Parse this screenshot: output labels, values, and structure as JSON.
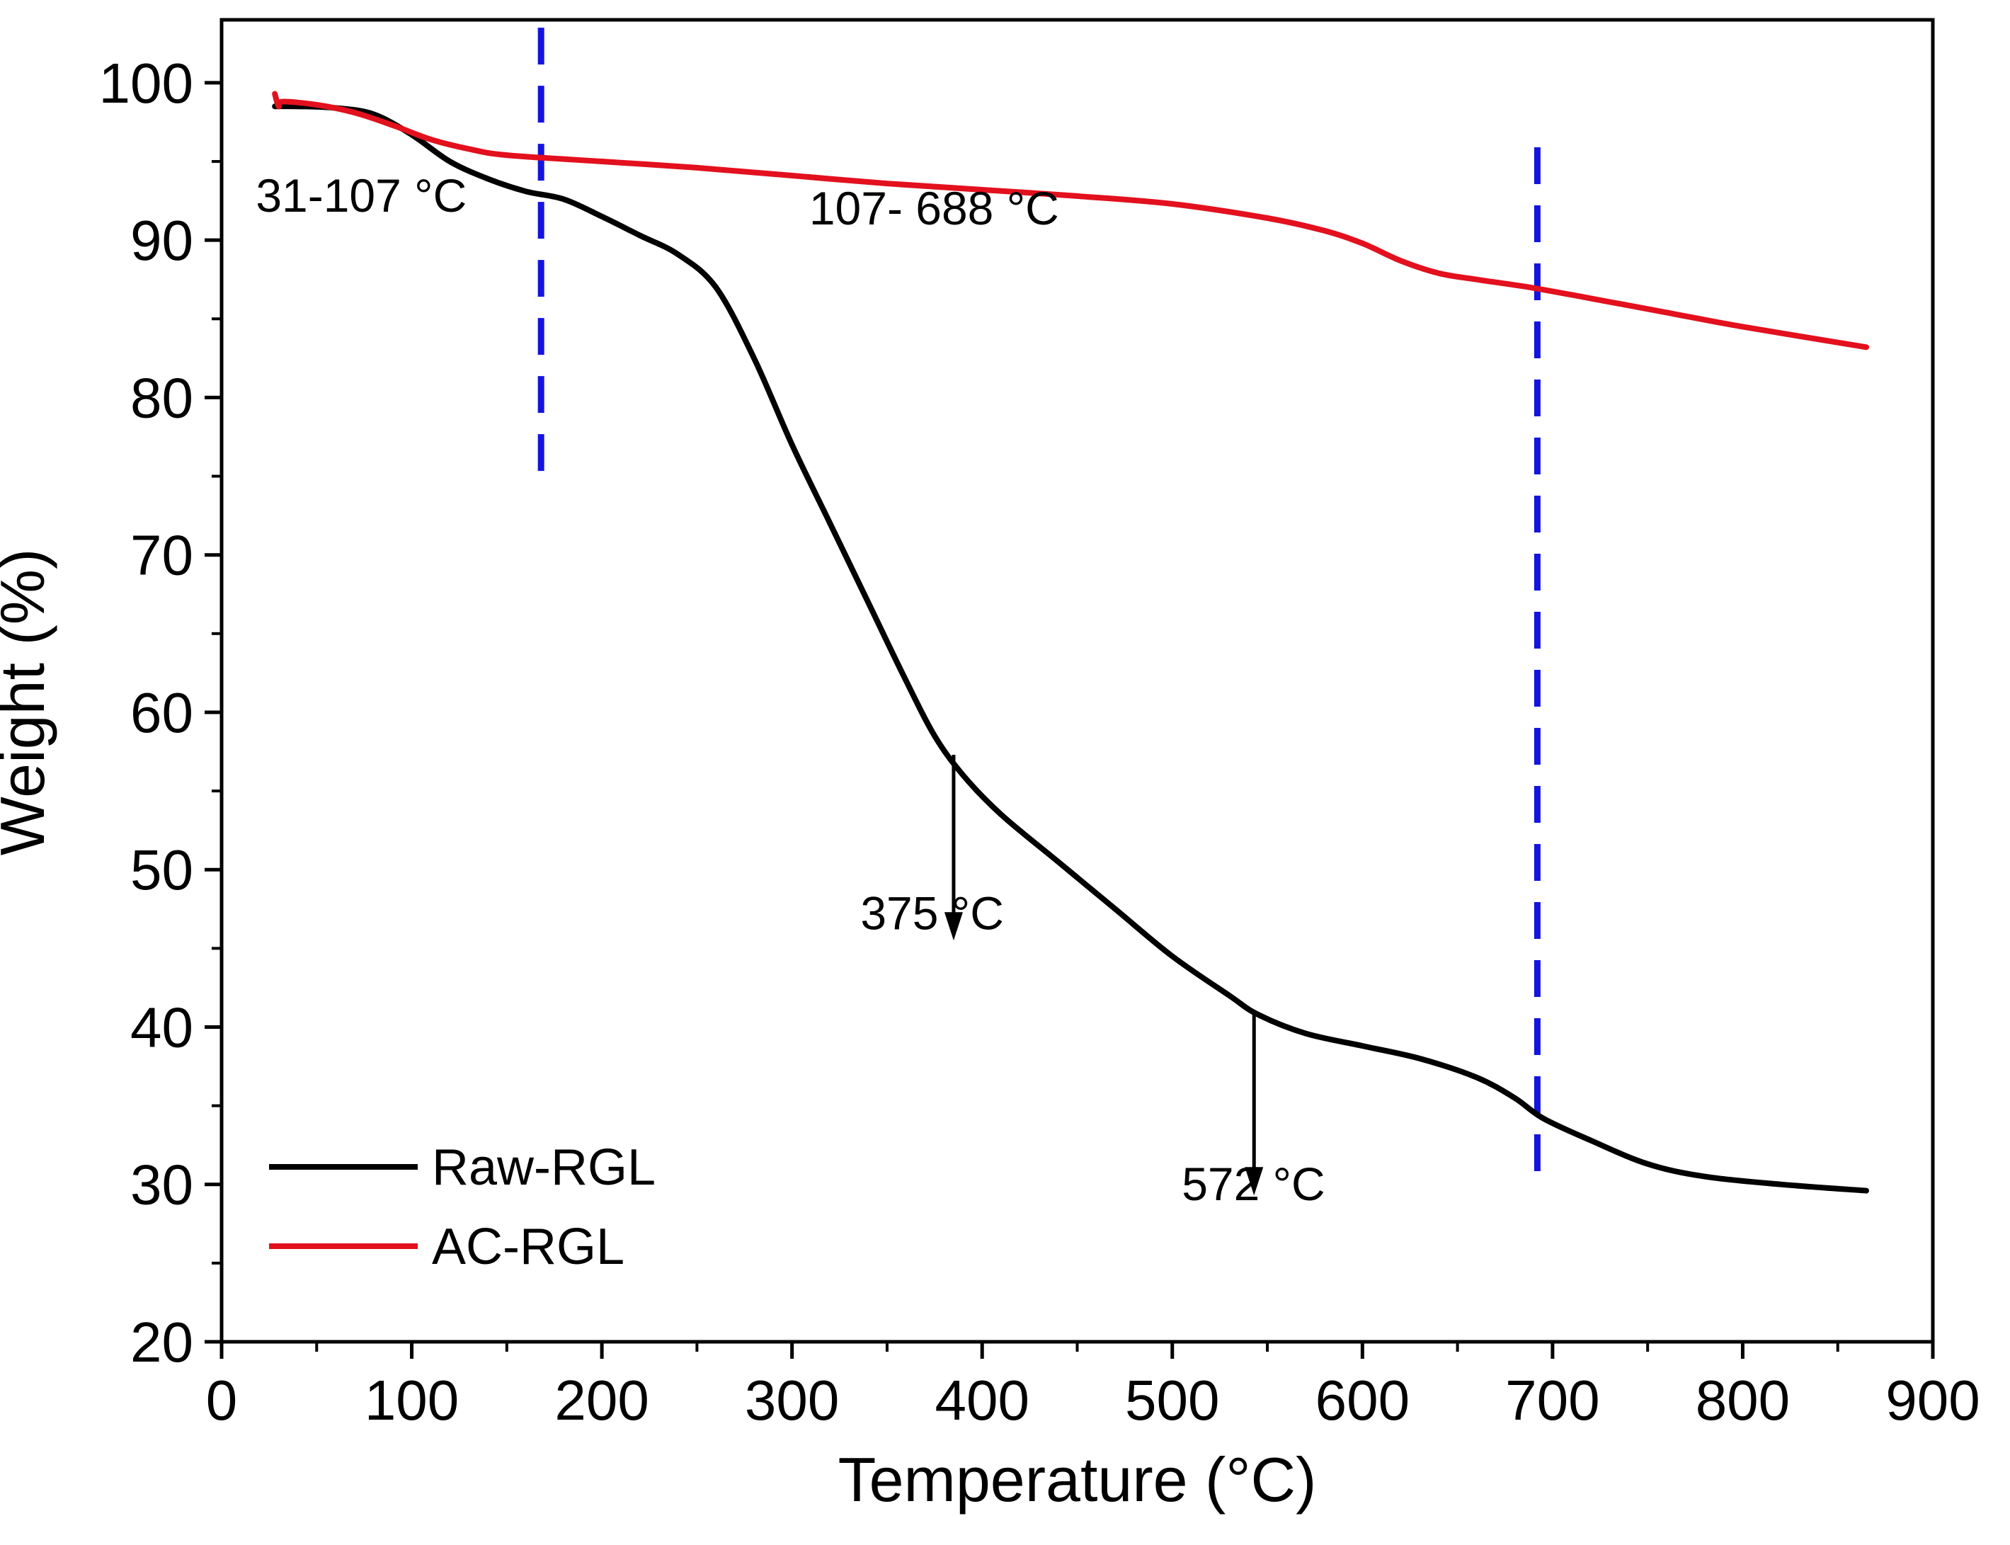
{
  "chart_data": {
    "type": "line",
    "title": "",
    "xlabel": "Temperature (°C)",
    "ylabel": "Weight (%)",
    "xlim": [
      0,
      900
    ],
    "ylim": [
      20,
      104
    ],
    "xticks": [
      0,
      100,
      200,
      300,
      400,
      500,
      600,
      700,
      800,
      900
    ],
    "xtick_labels": [
      "0",
      "100",
      "200",
      "300",
      "400",
      "500",
      "600",
      "700",
      "800",
      "900"
    ],
    "yticks": [
      20,
      30,
      40,
      50,
      60,
      70,
      80,
      90,
      100
    ],
    "ytick_labels": [
      "20",
      "30",
      "40",
      "50",
      "60",
      "70",
      "80",
      "90",
      "100"
    ],
    "grid": false,
    "legend_position": "bottom-left",
    "series": [
      {
        "name": "Raw-RGL",
        "color": "#000000",
        "x": [
          28,
          40,
          60,
          80,
          100,
          120,
          140,
          160,
          180,
          200,
          220,
          240,
          260,
          280,
          300,
          320,
          340,
          360,
          375,
          390,
          410,
          440,
          470,
          500,
          530,
          545,
          570,
          600,
          630,
          660,
          680,
          695,
          720,
          750,
          780,
          820,
          865
        ],
        "y": [
          98.5,
          98.5,
          98.4,
          98.0,
          96.7,
          95.0,
          93.9,
          93.1,
          92.6,
          91.5,
          90.3,
          89.1,
          87.0,
          82.5,
          77.0,
          72.0,
          67.0,
          62.0,
          58.5,
          56.0,
          53.5,
          50.5,
          47.5,
          44.5,
          42.0,
          40.8,
          39.6,
          38.8,
          38.0,
          36.8,
          35.5,
          34.2,
          32.8,
          31.3,
          30.5,
          30.0,
          29.6
        ]
      },
      {
        "name": "AC-RGL",
        "color": "#e3101e",
        "x": [
          28,
          30,
          32,
          50,
          70,
          90,
          110,
          130,
          150,
          200,
          250,
          300,
          350,
          400,
          450,
          500,
          550,
          580,
          600,
          620,
          640,
          660,
          688,
          720,
          760,
          800,
          865
        ],
        "y": [
          99.3,
          98.5,
          98.8,
          98.6,
          98.1,
          97.3,
          96.4,
          95.8,
          95.4,
          95.0,
          94.6,
          94.1,
          93.6,
          93.2,
          92.8,
          92.3,
          91.4,
          90.6,
          89.8,
          88.7,
          87.9,
          87.5,
          87.0,
          86.3,
          85.4,
          84.5,
          83.2
        ]
      }
    ],
    "reference_lines": [
      {
        "x": 168,
        "y_from": 74,
        "y_to": 103.5,
        "color": "#1414e0",
        "style": "dashed"
      },
      {
        "x": 692,
        "y_from": 29.5,
        "y_to": 95.9,
        "color": "#1414e0",
        "style": "dashed"
      }
    ],
    "arrows": [
      {
        "x": 385,
        "y_from": 57.3,
        "y_to": 45.5
      },
      {
        "x": 543,
        "y_from": 40.8,
        "y_to": 29.3
      }
    ],
    "annotations": [
      {
        "text": "31-107 °C",
        "x": 18,
        "y": 91.8
      },
      {
        "text": "107- 688 °C",
        "x": 309,
        "y": 91.0
      },
      {
        "text": "375 °C",
        "x": 336,
        "y": 46.2
      },
      {
        "text": "572 °C",
        "x": 505,
        "y": 29.0
      }
    ]
  }
}
